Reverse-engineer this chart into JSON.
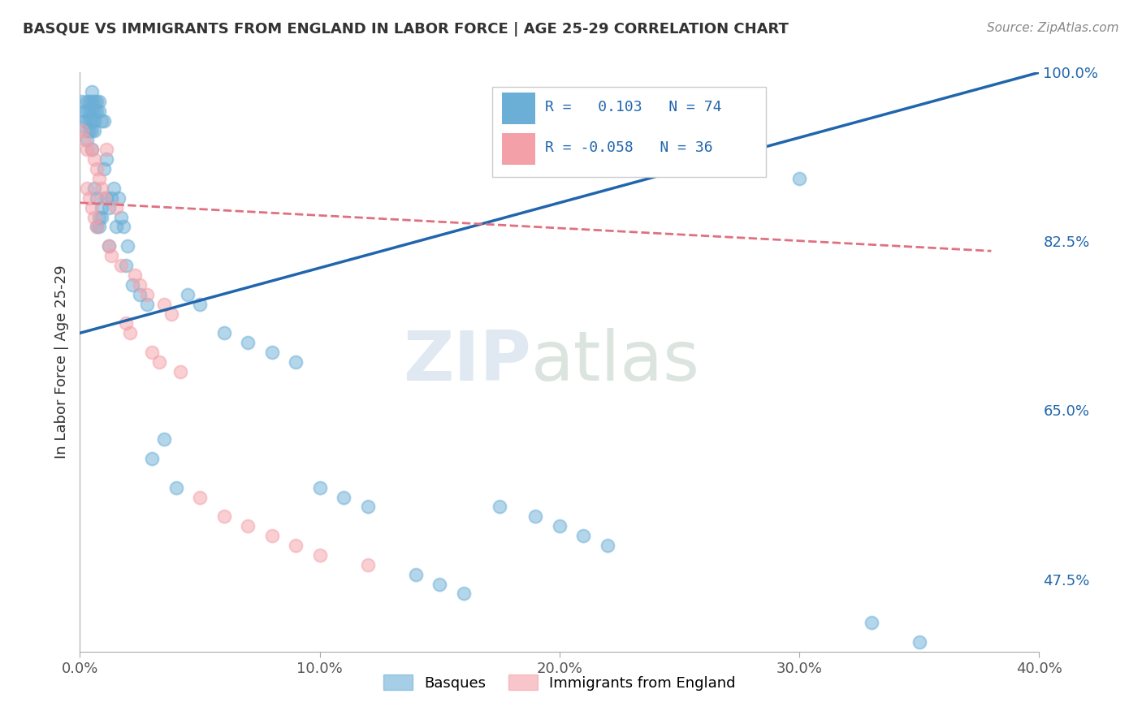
{
  "title": "BASQUE VS IMMIGRANTS FROM ENGLAND IN LABOR FORCE | AGE 25-29 CORRELATION CHART",
  "source": "Source: ZipAtlas.com",
  "ylabel": "In Labor Force | Age 25-29",
  "x_min": 0.0,
  "x_max": 0.4,
  "y_min": 0.4,
  "y_max": 1.0,
  "x_ticks": [
    0.0,
    0.1,
    0.2,
    0.3,
    0.4
  ],
  "x_tick_labels": [
    "0.0%",
    "10.0%",
    "20.0%",
    "30.0%",
    "40.0%"
  ],
  "y_ticks": [
    0.475,
    0.65,
    0.825,
    1.0
  ],
  "y_tick_labels": [
    "47.5%",
    "65.0%",
    "82.5%",
    "100.0%"
  ],
  "grid_color": "#cccccc",
  "bg_color": "#ffffff",
  "blue_color": "#6baed6",
  "pink_color": "#f4a0a8",
  "blue_line_color": "#2166ac",
  "pink_line_color": "#e07080",
  "R_blue": 0.103,
  "N_blue": 74,
  "R_pink": -0.058,
  "N_pink": 36,
  "watermark_zip": "ZIP",
  "watermark_atlas": "atlas",
  "legend_label_blue": "Basques",
  "legend_label_pink": "Immigrants from England",
  "blue_trend_x": [
    0.0,
    0.4
  ],
  "blue_trend_y": [
    0.73,
    1.0
  ],
  "pink_trend_x": [
    0.0,
    0.38
  ],
  "pink_trend_y": [
    0.865,
    0.815
  ],
  "blue_scatter_x": [
    0.001,
    0.002,
    0.002,
    0.003,
    0.003,
    0.003,
    0.003,
    0.003,
    0.004,
    0.004,
    0.004,
    0.004,
    0.005,
    0.005,
    0.005,
    0.005,
    0.005,
    0.005,
    0.006,
    0.006,
    0.006,
    0.006,
    0.006,
    0.007,
    0.007,
    0.007,
    0.007,
    0.008,
    0.008,
    0.008,
    0.008,
    0.009,
    0.009,
    0.009,
    0.01,
    0.01,
    0.011,
    0.011,
    0.012,
    0.012,
    0.013,
    0.014,
    0.015,
    0.016,
    0.017,
    0.018,
    0.019,
    0.02,
    0.022,
    0.025,
    0.028,
    0.03,
    0.035,
    0.04,
    0.045,
    0.05,
    0.06,
    0.07,
    0.08,
    0.09,
    0.1,
    0.11,
    0.12,
    0.14,
    0.15,
    0.16,
    0.175,
    0.19,
    0.2,
    0.21,
    0.22,
    0.3,
    0.33,
    0.35
  ],
  "blue_scatter_y": [
    0.97,
    0.96,
    0.95,
    0.97,
    0.96,
    0.95,
    0.94,
    0.93,
    0.97,
    0.96,
    0.95,
    0.94,
    0.98,
    0.97,
    0.96,
    0.95,
    0.94,
    0.92,
    0.97,
    0.96,
    0.95,
    0.94,
    0.88,
    0.97,
    0.96,
    0.87,
    0.84,
    0.97,
    0.96,
    0.85,
    0.84,
    0.95,
    0.86,
    0.85,
    0.95,
    0.9,
    0.91,
    0.87,
    0.86,
    0.82,
    0.87,
    0.88,
    0.84,
    0.87,
    0.85,
    0.84,
    0.8,
    0.82,
    0.78,
    0.77,
    0.76,
    0.6,
    0.62,
    0.57,
    0.77,
    0.76,
    0.73,
    0.72,
    0.71,
    0.7,
    0.57,
    0.56,
    0.55,
    0.48,
    0.47,
    0.46,
    0.55,
    0.54,
    0.53,
    0.52,
    0.51,
    0.89,
    0.43,
    0.41
  ],
  "pink_scatter_x": [
    0.001,
    0.002,
    0.003,
    0.003,
    0.004,
    0.005,
    0.005,
    0.006,
    0.006,
    0.007,
    0.007,
    0.008,
    0.009,
    0.01,
    0.011,
    0.012,
    0.013,
    0.015,
    0.017,
    0.019,
    0.021,
    0.023,
    0.025,
    0.028,
    0.03,
    0.033,
    0.035,
    0.038,
    0.042,
    0.05,
    0.06,
    0.07,
    0.08,
    0.09,
    0.1,
    0.12
  ],
  "pink_scatter_y": [
    0.94,
    0.93,
    0.92,
    0.88,
    0.87,
    0.92,
    0.86,
    0.91,
    0.85,
    0.9,
    0.84,
    0.89,
    0.88,
    0.87,
    0.92,
    0.82,
    0.81,
    0.86,
    0.8,
    0.74,
    0.73,
    0.79,
    0.78,
    0.77,
    0.71,
    0.7,
    0.76,
    0.75,
    0.69,
    0.56,
    0.54,
    0.53,
    0.52,
    0.51,
    0.5,
    0.49
  ]
}
